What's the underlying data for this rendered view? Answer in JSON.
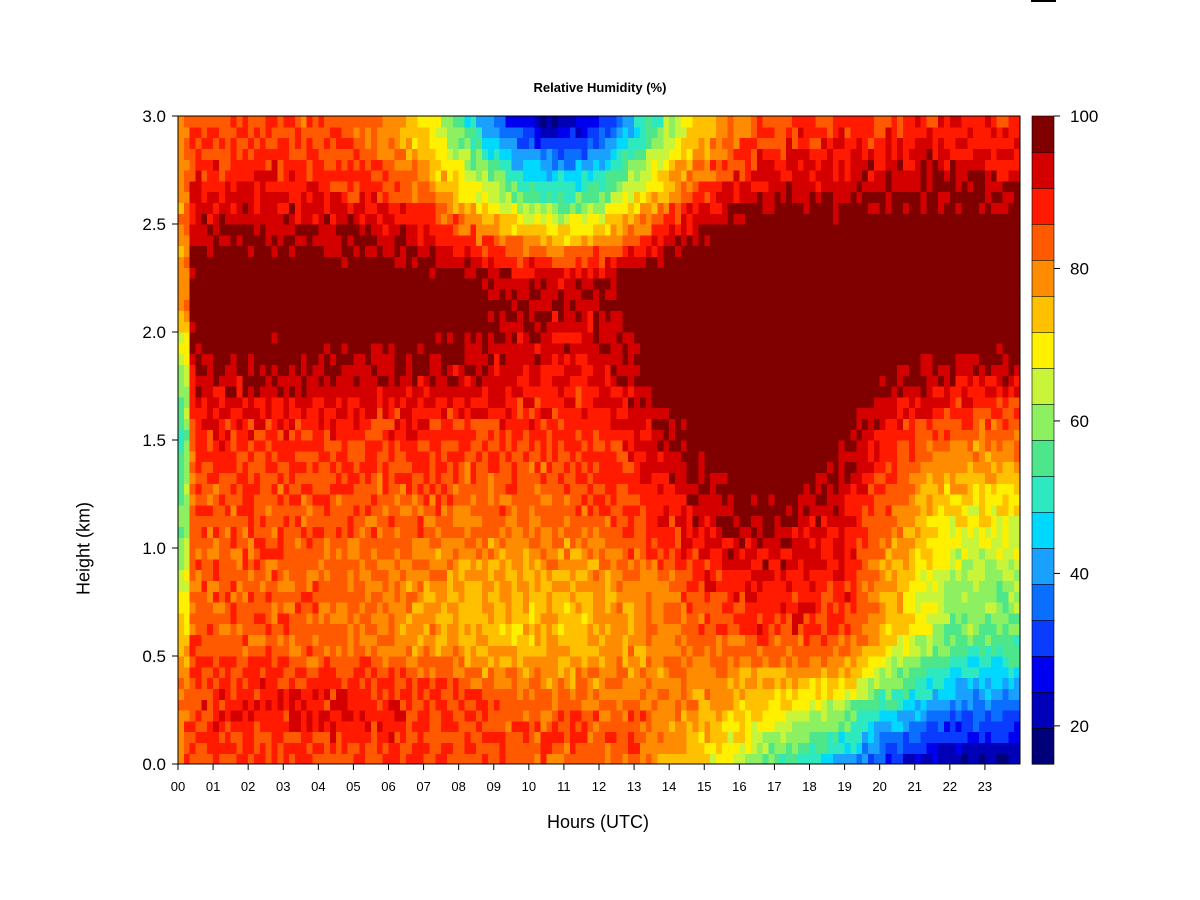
{
  "chart_data": {
    "type": "heatmap",
    "title": "Relative Humidity (%)",
    "xlabel": "Hours (UTC)",
    "ylabel": "Height (km)",
    "xlim": [
      0,
      24
    ],
    "ylim": [
      0.0,
      3.0
    ],
    "x_ticks": [
      "00",
      "01",
      "02",
      "03",
      "04",
      "05",
      "06",
      "07",
      "08",
      "09",
      "10",
      "11",
      "12",
      "13",
      "14",
      "15",
      "16",
      "17",
      "18",
      "19",
      "20",
      "21",
      "22",
      "23"
    ],
    "y_ticks": [
      "0.0",
      "0.5",
      "1.0",
      "1.5",
      "2.0",
      "2.5",
      "3.0"
    ],
    "colorbar": {
      "range": [
        15,
        100
      ],
      "ticks": [
        "20",
        "40",
        "60",
        "80",
        "100"
      ],
      "colors": [
        "#00007a",
        "#0000b8",
        "#0000f0",
        "#0a3cff",
        "#0a6eff",
        "#1aa0ff",
        "#00d8ff",
        "#2ee8c0",
        "#4ee68a",
        "#8cf060",
        "#c8f53a",
        "#fff000",
        "#ffc000",
        "#ff8c00",
        "#ff5a00",
        "#ff1a00",
        "#d40000",
        "#800000"
      ]
    },
    "grid": false,
    "legend": "none"
  }
}
